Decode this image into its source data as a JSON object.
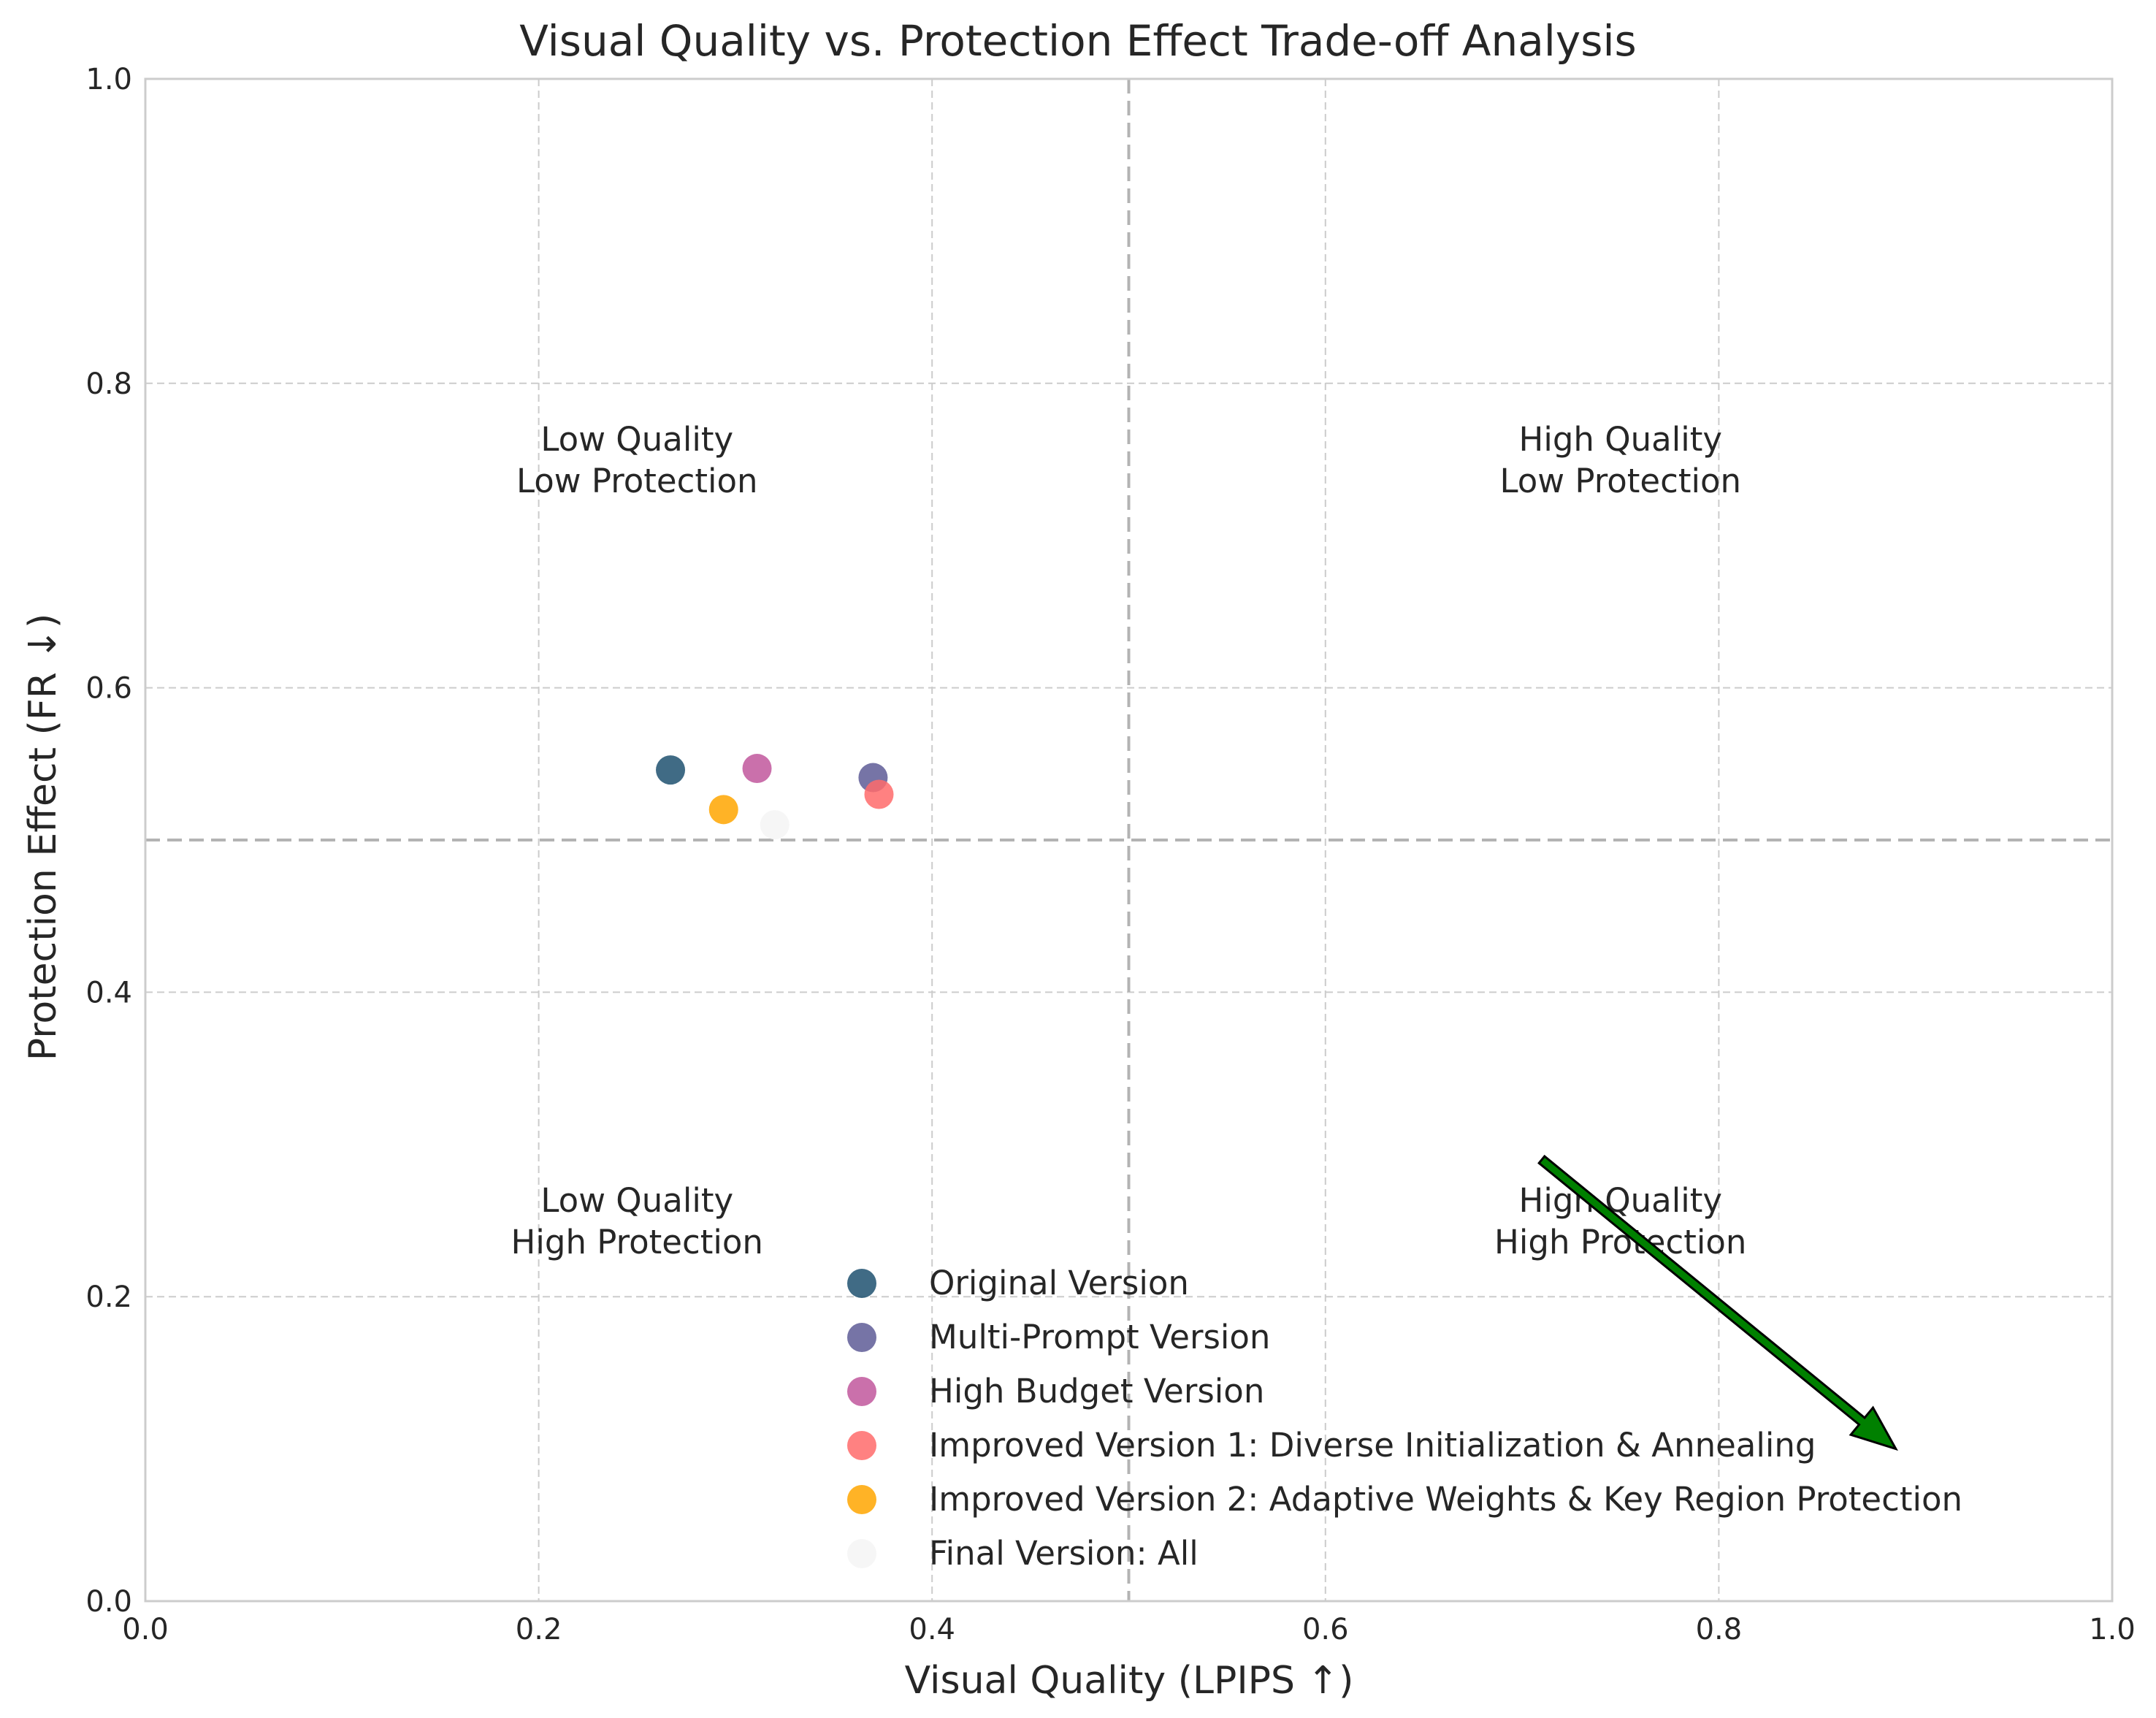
{
  "chart_data": {
    "type": "scatter",
    "title": "Visual Quality vs. Protection Effect Trade-off Analysis",
    "xlabel": "Visual Quality (LPIPS ↑)",
    "ylabel": "Protection Effect (FR ↓)",
    "xlim": [
      0.0,
      1.0
    ],
    "ylim": [
      0.0,
      1.0
    ],
    "xticks": [
      0.0,
      0.2,
      0.4,
      0.6,
      0.8,
      1.0
    ],
    "yticks": [
      0.0,
      0.2,
      0.4,
      0.6,
      0.8,
      1.0
    ],
    "xtick_labels": [
      "0.0",
      "0.2",
      "0.4",
      "0.6",
      "0.8",
      "1.0"
    ],
    "ytick_labels": [
      "0.0",
      "0.2",
      "0.4",
      "0.6",
      "0.8",
      "1.0"
    ],
    "grid": true,
    "legend_position": "lower-center",
    "reference_lines": {
      "x": 0.5,
      "y": 0.5
    },
    "quadrant_labels": [
      {
        "lines": [
          "Low Quality",
          "Low Protection"
        ],
        "x": 0.25,
        "y": 0.75
      },
      {
        "lines": [
          "High Quality",
          "Low Protection"
        ],
        "x": 0.75,
        "y": 0.75
      },
      {
        "lines": [
          "Low Quality",
          "High Protection"
        ],
        "x": 0.25,
        "y": 0.25
      },
      {
        "lines": [
          "High Quality",
          "High Protection"
        ],
        "x": 0.75,
        "y": 0.25
      }
    ],
    "series": [
      {
        "name": "Original Version",
        "x": 0.267,
        "y": 0.546,
        "color": "#1e5170"
      },
      {
        "name": "Multi-Prompt Version",
        "x": 0.37,
        "y": 0.541,
        "color": "#5e5c96"
      },
      {
        "name": "High Budget Version",
        "x": 0.311,
        "y": 0.547,
        "color": "#c1579c"
      },
      {
        "name": "Improved Version 1: Diverse Initialization & Annealing",
        "x": 0.373,
        "y": 0.53,
        "color": "#ff6b6b"
      },
      {
        "name": "Improved Version 2: Adaptive Weights & Key Region Protection",
        "x": 0.294,
        "y": 0.52,
        "color": "#ffa600"
      },
      {
        "name": "Final Version: All",
        "x": 0.32,
        "y": 0.51,
        "color": "#f4f4f4"
      }
    ],
    "arrow": {
      "from": [
        0.71,
        0.29
      ],
      "to": [
        0.89,
        0.1
      ],
      "color": "#008000"
    }
  }
}
